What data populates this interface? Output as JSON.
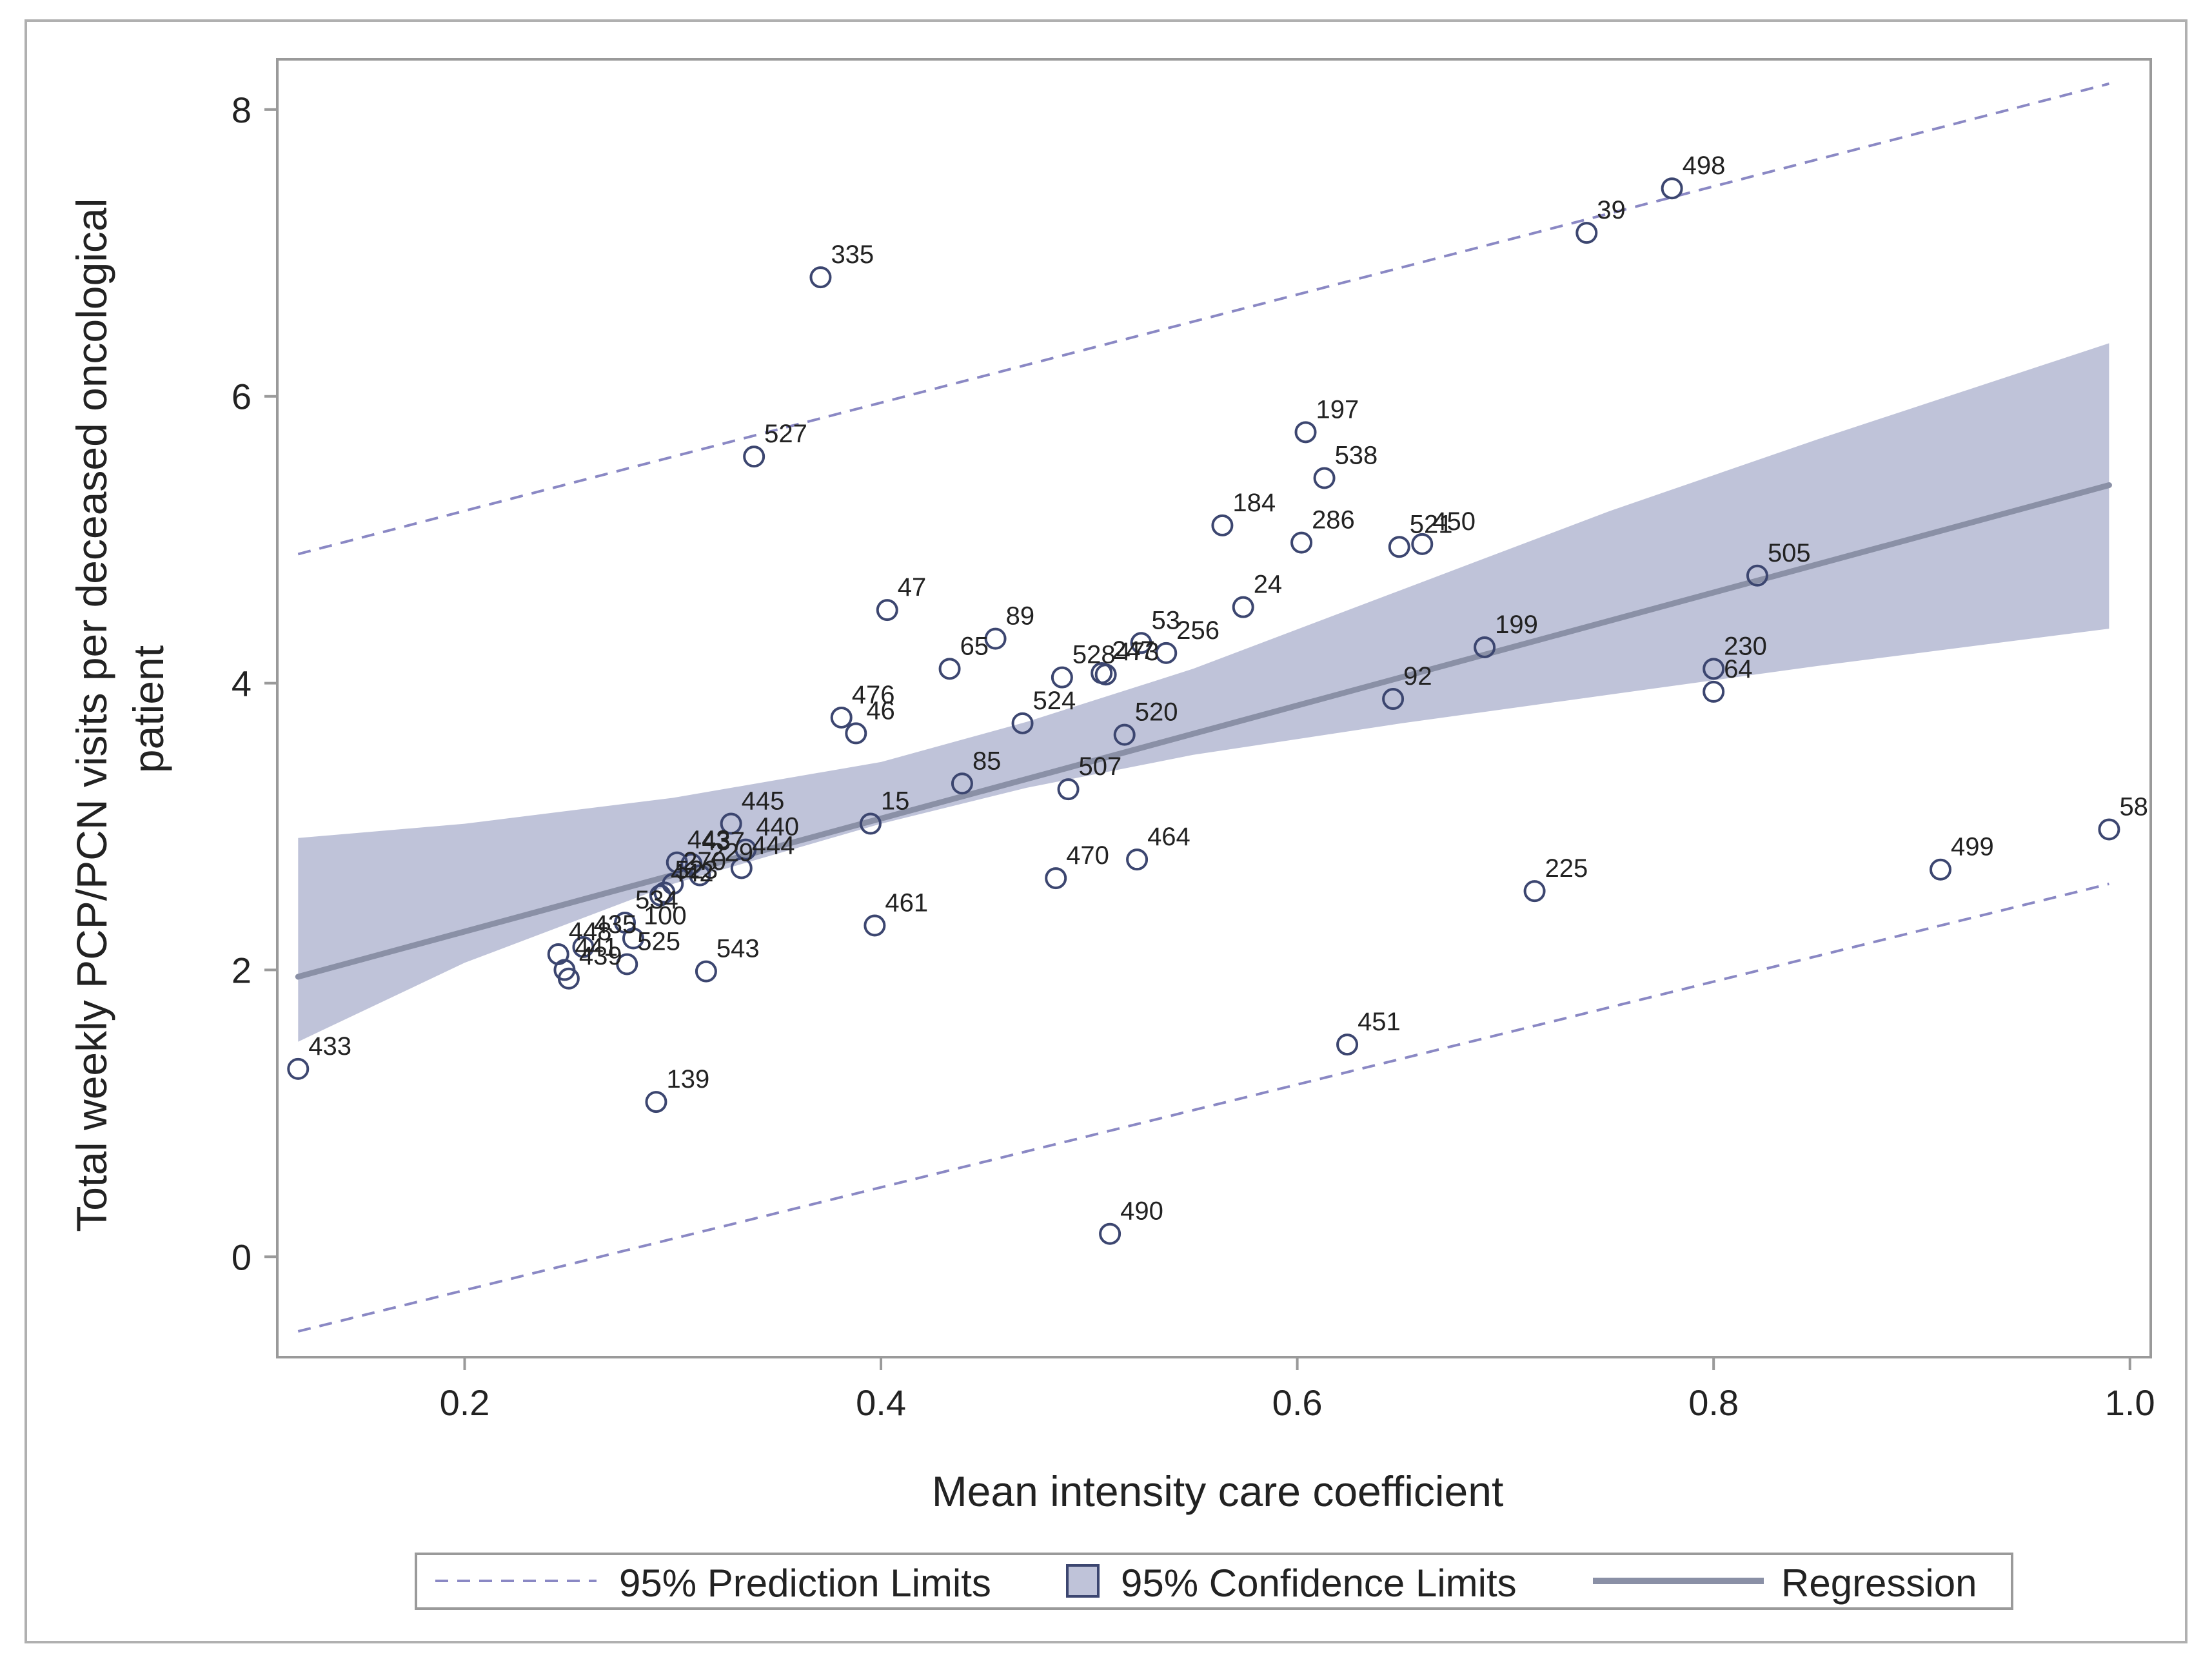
{
  "chart_data": {
    "type": "scatter",
    "title": "",
    "xlabel": "Mean intensity care coefficient",
    "ylabel_lines": [
      "Total weekly PCP/PCN visits per deceased oncological",
      "patient"
    ],
    "xlim": [
      0.11,
      1.01
    ],
    "ylim": [
      -0.7,
      8.35
    ],
    "x_ticks": [
      0.2,
      0.4,
      0.6,
      0.8,
      1.0
    ],
    "x_tick_labels": [
      "0.2",
      "0.4",
      "0.6",
      "0.8",
      "1.0"
    ],
    "y_ticks": [
      0,
      2,
      4,
      6,
      8
    ],
    "y_tick_labels": [
      "0",
      "2",
      "4",
      "6",
      "8"
    ],
    "regression": {
      "intercept": 1.48,
      "slope": 3.94,
      "x_range": [
        0.12,
        0.99
      ]
    },
    "confidence_band": {
      "x": [
        0.12,
        0.2,
        0.3,
        0.4,
        0.47,
        0.55,
        0.65,
        0.75,
        0.85,
        0.99
      ],
      "lower": [
        1.5,
        2.05,
        2.6,
        3.02,
        3.27,
        3.5,
        3.72,
        3.92,
        4.12,
        4.38
      ],
      "upper": [
        2.92,
        3.02,
        3.2,
        3.45,
        3.73,
        4.1,
        4.65,
        5.2,
        5.7,
        6.37
      ]
    },
    "prediction_limits": {
      "upper": {
        "x": [
          0.12,
          0.99
        ],
        "y": [
          4.9,
          8.18
        ]
      },
      "lower": {
        "x": [
          0.12,
          0.99
        ],
        "y": [
          -0.52,
          2.6
        ]
      }
    },
    "points": [
      {
        "label": "433",
        "x": 0.12,
        "y": 1.31
      },
      {
        "label": "139",
        "x": 0.292,
        "y": 1.08
      },
      {
        "label": "335",
        "x": 0.371,
        "y": 6.83
      },
      {
        "label": "527",
        "x": 0.339,
        "y": 5.58
      },
      {
        "label": "47",
        "x": 0.403,
        "y": 4.51
      },
      {
        "label": "89",
        "x": 0.455,
        "y": 4.31
      },
      {
        "label": "65",
        "x": 0.433,
        "y": 4.1
      },
      {
        "label": "528",
        "x": 0.487,
        "y": 4.04
      },
      {
        "label": "53",
        "x": 0.525,
        "y": 4.28
      },
      {
        "label": "256",
        "x": 0.537,
        "y": 4.21
      },
      {
        "label": "247",
        "x": 0.506,
        "y": 4.07
      },
      {
        "label": "473",
        "x": 0.508,
        "y": 4.06
      },
      {
        "label": "524",
        "x": 0.468,
        "y": 3.72
      },
      {
        "label": "476",
        "x": 0.381,
        "y": 3.76
      },
      {
        "label": "46",
        "x": 0.388,
        "y": 3.65
      },
      {
        "label": "85",
        "x": 0.439,
        "y": 3.3
      },
      {
        "label": "507",
        "x": 0.49,
        "y": 3.26
      },
      {
        "label": "520",
        "x": 0.517,
        "y": 3.64
      },
      {
        "label": "15",
        "x": 0.395,
        "y": 3.02
      },
      {
        "label": "445",
        "x": 0.328,
        "y": 3.02
      },
      {
        "label": "440",
        "x": 0.335,
        "y": 2.84
      },
      {
        "label": "437",
        "x": 0.309,
        "y": 2.74
      },
      {
        "label": "444",
        "x": 0.333,
        "y": 2.71
      },
      {
        "label": "443",
        "x": 0.302,
        "y": 2.75
      },
      {
        "label": "229",
        "x": 0.313,
        "y": 2.66
      },
      {
        "label": "270",
        "x": 0.3,
        "y": 2.6
      },
      {
        "label": "523",
        "x": 0.296,
        "y": 2.54
      },
      {
        "label": "442",
        "x": 0.294,
        "y": 2.52
      },
      {
        "label": "534",
        "x": 0.277,
        "y": 2.33
      },
      {
        "label": "100",
        "x": 0.281,
        "y": 2.22
      },
      {
        "label": "448",
        "x": 0.245,
        "y": 2.11
      },
      {
        "label": "435",
        "x": 0.257,
        "y": 2.16
      },
      {
        "label": "441",
        "x": 0.248,
        "y": 2.0
      },
      {
        "label": "439",
        "x": 0.25,
        "y": 1.94
      },
      {
        "label": "525",
        "x": 0.278,
        "y": 2.04
      },
      {
        "label": "543",
        "x": 0.316,
        "y": 1.99
      },
      {
        "label": "461",
        "x": 0.397,
        "y": 2.31
      },
      {
        "label": "470",
        "x": 0.484,
        "y": 2.64
      },
      {
        "label": "464",
        "x": 0.523,
        "y": 2.77
      },
      {
        "label": "197",
        "x": 0.604,
        "y": 5.75
      },
      {
        "label": "538",
        "x": 0.613,
        "y": 5.43
      },
      {
        "label": "184",
        "x": 0.564,
        "y": 5.1
      },
      {
        "label": "286",
        "x": 0.602,
        "y": 4.98
      },
      {
        "label": "521",
        "x": 0.649,
        "y": 4.95
      },
      {
        "label": "450",
        "x": 0.66,
        "y": 4.97
      },
      {
        "label": "24",
        "x": 0.574,
        "y": 4.53
      },
      {
        "label": "92",
        "x": 0.646,
        "y": 3.89
      },
      {
        "label": "199",
        "x": 0.69,
        "y": 4.25
      },
      {
        "label": "39",
        "x": 0.739,
        "y": 7.14
      },
      {
        "label": "498",
        "x": 0.78,
        "y": 7.45
      },
      {
        "label": "505",
        "x": 0.821,
        "y": 4.75
      },
      {
        "label": "230",
        "x": 0.8,
        "y": 4.1
      },
      {
        "label": "64",
        "x": 0.8,
        "y": 3.94
      },
      {
        "label": "225",
        "x": 0.714,
        "y": 2.55
      },
      {
        "label": "451",
        "x": 0.624,
        "y": 1.48
      },
      {
        "label": "490",
        "x": 0.51,
        "y": 0.16
      },
      {
        "label": "499",
        "x": 0.909,
        "y": 2.7
      },
      {
        "label": "58",
        "x": 0.99,
        "y": 2.98
      }
    ],
    "legend": {
      "placement": "bottom",
      "entries": [
        {
          "kind": "dashed-line",
          "label": "95% Prediction Limits"
        },
        {
          "kind": "filled-box",
          "label": "95% Confidence Limits"
        },
        {
          "kind": "solid-line",
          "label": "Regression"
        }
      ]
    },
    "colors": {
      "marker": "#3c4670",
      "prediction": "#8a88c4",
      "band_fill": "#bfc3d9",
      "regression": "#8a90a6",
      "frame": "#9a9a9a",
      "text": "#222222"
    }
  }
}
